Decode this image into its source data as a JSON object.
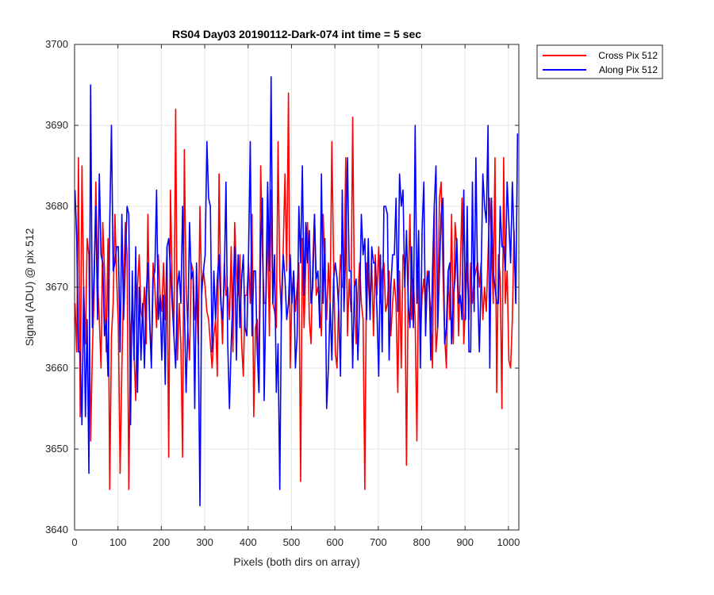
{
  "chart_data": {
    "type": "line",
    "title": "RS04 Day03 20190112-Dark-074 int time = 5 sec",
    "xlabel": "Pixels (both dirs on array)",
    "ylabel": "Signal (ADU) @ pix 512",
    "xlim": [
      0,
      1024
    ],
    "ylim": [
      3640,
      3700
    ],
    "x_ticks": [
      0,
      100,
      200,
      300,
      400,
      500,
      600,
      700,
      800,
      900,
      1000
    ],
    "y_ticks": [
      3640,
      3650,
      3660,
      3670,
      3680,
      3690,
      3700
    ],
    "grid": true,
    "legend_position": "outside-top-right",
    "x": {
      "start": 1,
      "step": 4
    },
    "series": [
      {
        "name": "Cross Pix 512",
        "color": "#ff0000",
        "values": [
          3668,
          3662,
          3686,
          3654,
          3685,
          3670,
          3663,
          3676,
          3674,
          3651,
          3662,
          3669,
          3683,
          3671,
          3666,
          3660,
          3678,
          3672,
          3662,
          3676,
          3645,
          3664,
          3668,
          3679,
          3671,
          3665,
          3647,
          3660,
          3670,
          3678,
          3674,
          3645,
          3664,
          3668,
          3662,
          3656,
          3670,
          3674,
          3667,
          3666,
          3670,
          3663,
          3679,
          3666,
          3661,
          3673,
          3670,
          3665,
          3674,
          3669,
          3667,
          3673,
          3666,
          3675,
          3649,
          3682,
          3670,
          3664,
          3692,
          3661,
          3668,
          3663,
          3649,
          3687,
          3670,
          3665,
          3661,
          3673,
          3672,
          3666,
          3669,
          3663,
          3680,
          3669,
          3672,
          3670,
          3667,
          3666,
          3663,
          3660,
          3664,
          3666,
          3659,
          3684,
          3669,
          3663,
          3673,
          3669,
          3670,
          3666,
          3675,
          3662,
          3678,
          3672,
          3669,
          3674,
          3663,
          3659,
          3669,
          3669,
          3673,
          3668,
          3679,
          3654,
          3665,
          3666,
          3659,
          3685,
          3674,
          3668,
          3668,
          3678,
          3664,
          3682,
          3668,
          3667,
          3665,
          3688,
          3671,
          3666,
          3675,
          3684,
          3672,
          3694,
          3660,
          3669,
          3672,
          3667,
          3670,
          3673,
          3646,
          3676,
          3665,
          3673,
          3678,
          3666,
          3663,
          3673,
          3679,
          3669,
          3670,
          3668,
          3664,
          3679,
          3672,
          3666,
          3673,
          3668,
          3688,
          3673,
          3662,
          3660,
          3669,
          3674,
          3670,
          3670,
          3686,
          3664,
          3671,
          3667,
          3691,
          3669,
          3663,
          3669,
          3673,
          3668,
          3666,
          3645,
          3673,
          3671,
          3667,
          3673,
          3664,
          3674,
          3669,
          3675,
          3668,
          3672,
          3673,
          3667,
          3668,
          3672,
          3664,
          3668,
          3671,
          3668,
          3657,
          3672,
          3660,
          3674,
          3673,
          3648,
          3670,
          3679,
          3666,
          3671,
          3666,
          3651,
          3672,
          3663,
          3669,
          3671,
          3668,
          3672,
          3670,
          3667,
          3660,
          3680,
          3662,
          3665,
          3681,
          3683,
          3672,
          3664,
          3660,
          3672,
          3666,
          3679,
          3663,
          3678,
          3675,
          3664,
          3672,
          3681,
          3663,
          3668,
          3673,
          3666,
          3673,
          3668,
          3671,
          3672,
          3673,
          3670,
          3673,
          3666,
          3670,
          3667,
          3674,
          3681,
          3675,
          3668,
          3686,
          3657,
          3674,
          3671,
          3655,
          3686,
          3668,
          3672,
          3661,
          3660,
          3666,
          3677,
          3668
        ]
      },
      {
        "name": "Along Pix 512",
        "color": "#0000ff",
        "values": [
          3682,
          3676,
          3662,
          3662,
          3653,
          3670,
          3654,
          3666,
          3647,
          3695,
          3665,
          3672,
          3680,
          3666,
          3684,
          3674,
          3673,
          3664,
          3666,
          3659,
          3678,
          3690,
          3672,
          3673,
          3675,
          3675,
          3662,
          3679,
          3666,
          3673,
          3680,
          3679,
          3653,
          3672,
          3661,
          3675,
          3657,
          3670,
          3661,
          3668,
          3660,
          3669,
          3673,
          3666,
          3660,
          3671,
          3672,
          3682,
          3666,
          3669,
          3661,
          3669,
          3658,
          3675,
          3676,
          3672,
          3668,
          3664,
          3660,
          3670,
          3672,
          3668,
          3680,
          3668,
          3657,
          3665,
          3678,
          3671,
          3672,
          3655,
          3673,
          3665,
          3643,
          3670,
          3672,
          3674,
          3688,
          3681,
          3680,
          3662,
          3672,
          3666,
          3671,
          3674,
          3668,
          3666,
          3671,
          3683,
          3663,
          3655,
          3663,
          3669,
          3675,
          3661,
          3674,
          3665,
          3671,
          3674,
          3665,
          3664,
          3674,
          3688,
          3664,
          3672,
          3672,
          3662,
          3657,
          3676,
          3681,
          3656,
          3669,
          3683,
          3672,
          3696,
          3668,
          3674,
          3657,
          3663,
          3645,
          3669,
          3674,
          3671,
          3666,
          3668,
          3674,
          3668,
          3672,
          3660,
          3664,
          3680,
          3673,
          3685,
          3669,
          3678,
          3673,
          3677,
          3668,
          3670,
          3679,
          3671,
          3672,
          3665,
          3684,
          3668,
          3676,
          3655,
          3660,
          3668,
          3661,
          3671,
          3673,
          3671,
          3667,
          3659,
          3682,
          3667,
          3675,
          3686,
          3672,
          3672,
          3660,
          3670,
          3671,
          3661,
          3668,
          3679,
          3674,
          3676,
          3666,
          3676,
          3666,
          3675,
          3673,
          3673,
          3667,
          3659,
          3674,
          3662,
          3680,
          3680,
          3679,
          3661,
          3670,
          3674,
          3674,
          3681,
          3667,
          3684,
          3680,
          3682,
          3670,
          3677,
          3668,
          3665,
          3675,
          3665,
          3690,
          3668,
          3677,
          3660,
          3677,
          3683,
          3664,
          3671,
          3672,
          3661,
          3672,
          3680,
          3685,
          3665,
          3672,
          3679,
          3681,
          3663,
          3665,
          3672,
          3673,
          3663,
          3669,
          3671,
          3676,
          3668,
          3669,
          3666,
          3682,
          3666,
          3680,
          3662,
          3662,
          3683,
          3667,
          3686,
          3670,
          3662,
          3671,
          3684,
          3680,
          3678,
          3690,
          3660,
          3681,
          3672,
          3670,
          3668,
          3668,
          3680,
          3675,
          3675,
          3672,
          3683,
          3678,
          3673,
          3683,
          3676,
          3668,
          3689
        ]
      }
    ]
  }
}
